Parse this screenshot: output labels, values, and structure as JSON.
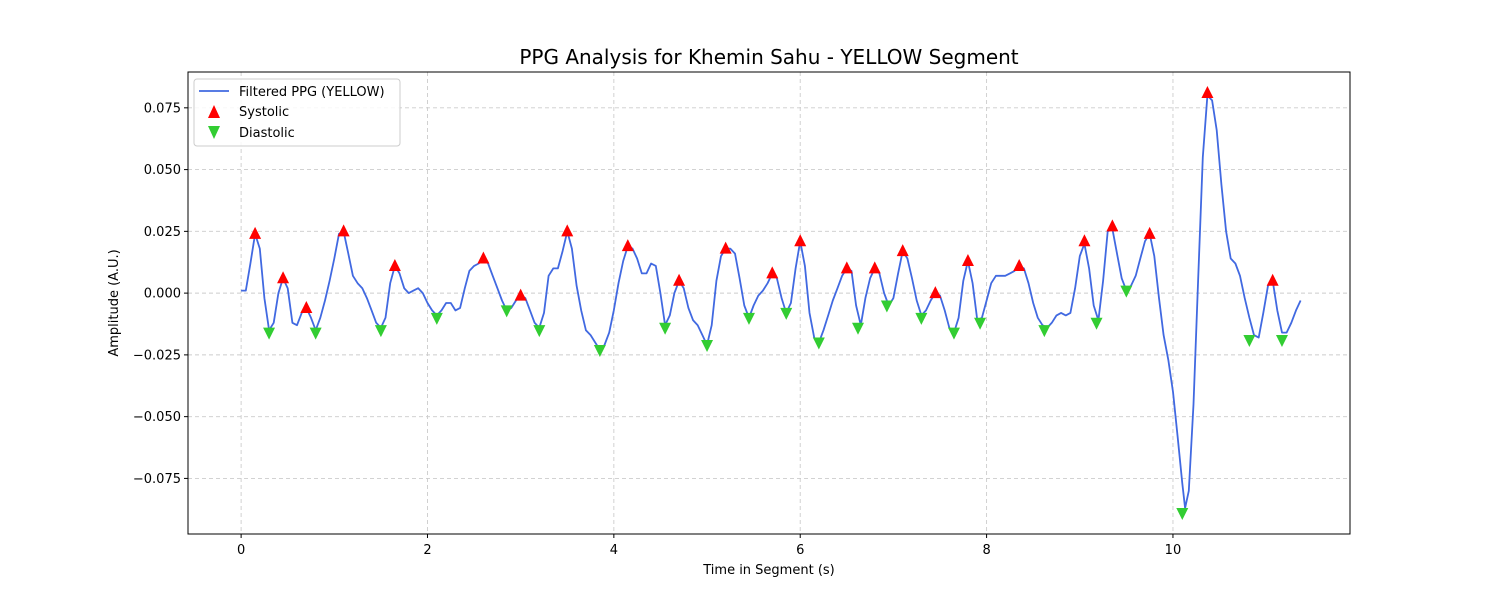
{
  "chart_data": {
    "type": "line",
    "title": "PPG Analysis for Khemin Sahu - YELLOW Segment",
    "xlabel": "Time in Segment (s)",
    "ylabel": "Amplitude (A.U.)",
    "xlim": [
      -0.57,
      11.9
    ],
    "ylim": [
      -0.0975,
      0.0895
    ],
    "x_ticks": [
      0,
      2,
      4,
      6,
      8,
      10
    ],
    "x_tick_labels": [
      "0",
      "2",
      "4",
      "6",
      "8",
      "10"
    ],
    "y_ticks": [
      -0.075,
      -0.05,
      -0.025,
      0.0,
      0.025,
      0.05,
      0.075
    ],
    "y_tick_labels": [
      "−0.075",
      "−0.050",
      "−0.025",
      "0.000",
      "0.025",
      "0.050",
      "0.075"
    ],
    "grid": true,
    "legend_position": "top-left",
    "colors": {
      "line": "#4169e1",
      "systolic": "#ff0000",
      "diastolic": "#32cd32",
      "grid": "#cccccc"
    },
    "series": [
      {
        "name": "Filtered PPG (YELLOW)",
        "kind": "line",
        "points": [
          [
            0.0,
            0.001
          ],
          [
            0.05,
            0.001
          ],
          [
            0.1,
            0.012
          ],
          [
            0.15,
            0.024
          ],
          [
            0.2,
            0.018
          ],
          [
            0.25,
            -0.002
          ],
          [
            0.3,
            -0.015
          ],
          [
            0.35,
            -0.012
          ],
          [
            0.4,
            0.0
          ],
          [
            0.45,
            0.006
          ],
          [
            0.5,
            0.002
          ],
          [
            0.55,
            -0.012
          ],
          [
            0.6,
            -0.013
          ],
          [
            0.65,
            -0.008
          ],
          [
            0.7,
            -0.006
          ],
          [
            0.75,
            -0.01
          ],
          [
            0.8,
            -0.015
          ],
          [
            0.85,
            -0.01
          ],
          [
            0.9,
            -0.003
          ],
          [
            0.95,
            0.005
          ],
          [
            1.0,
            0.014
          ],
          [
            1.05,
            0.024
          ],
          [
            1.1,
            0.025
          ],
          [
            1.15,
            0.016
          ],
          [
            1.2,
            0.007
          ],
          [
            1.25,
            0.004
          ],
          [
            1.3,
            0.002
          ],
          [
            1.35,
            -0.002
          ],
          [
            1.4,
            -0.007
          ],
          [
            1.45,
            -0.012
          ],
          [
            1.5,
            -0.014
          ],
          [
            1.55,
            -0.01
          ],
          [
            1.6,
            0.004
          ],
          [
            1.65,
            0.011
          ],
          [
            1.7,
            0.008
          ],
          [
            1.75,
            0.002
          ],
          [
            1.8,
            0.0
          ],
          [
            1.85,
            0.001
          ],
          [
            1.9,
            0.002
          ],
          [
            1.95,
            0.0
          ],
          [
            2.0,
            -0.004
          ],
          [
            2.05,
            -0.007
          ],
          [
            2.1,
            -0.009
          ],
          [
            2.15,
            -0.007
          ],
          [
            2.2,
            -0.004
          ],
          [
            2.25,
            -0.004
          ],
          [
            2.3,
            -0.007
          ],
          [
            2.35,
            -0.006
          ],
          [
            2.4,
            0.002
          ],
          [
            2.45,
            0.009
          ],
          [
            2.5,
            0.011
          ],
          [
            2.55,
            0.012
          ],
          [
            2.6,
            0.014
          ],
          [
            2.65,
            0.012
          ],
          [
            2.7,
            0.007
          ],
          [
            2.75,
            0.002
          ],
          [
            2.8,
            -0.003
          ],
          [
            2.85,
            -0.007
          ],
          [
            2.9,
            -0.006
          ],
          [
            2.95,
            -0.003
          ],
          [
            3.0,
            -0.001
          ],
          [
            3.05,
            -0.002
          ],
          [
            3.1,
            -0.007
          ],
          [
            3.15,
            -0.012
          ],
          [
            3.2,
            -0.014
          ],
          [
            3.25,
            -0.008
          ],
          [
            3.3,
            0.007
          ],
          [
            3.35,
            0.01
          ],
          [
            3.4,
            0.01
          ],
          [
            3.45,
            0.017
          ],
          [
            3.5,
            0.025
          ],
          [
            3.55,
            0.018
          ],
          [
            3.6,
            0.003
          ],
          [
            3.65,
            -0.007
          ],
          [
            3.7,
            -0.015
          ],
          [
            3.75,
            -0.017
          ],
          [
            3.8,
            -0.02
          ],
          [
            3.85,
            -0.023
          ],
          [
            3.9,
            -0.021
          ],
          [
            3.95,
            -0.016
          ],
          [
            4.0,
            -0.007
          ],
          [
            4.05,
            0.004
          ],
          [
            4.1,
            0.013
          ],
          [
            4.15,
            0.019
          ],
          [
            4.2,
            0.018
          ],
          [
            4.25,
            0.014
          ],
          [
            4.3,
            0.008
          ],
          [
            4.35,
            0.008
          ],
          [
            4.4,
            0.012
          ],
          [
            4.45,
            0.011
          ],
          [
            4.5,
            0.0
          ],
          [
            4.55,
            -0.013
          ],
          [
            4.6,
            -0.009
          ],
          [
            4.65,
            0.0
          ],
          [
            4.7,
            0.005
          ],
          [
            4.75,
            0.002
          ],
          [
            4.8,
            -0.006
          ],
          [
            4.85,
            -0.011
          ],
          [
            4.9,
            -0.013
          ],
          [
            4.95,
            -0.017
          ],
          [
            5.0,
            -0.021
          ],
          [
            5.05,
            -0.013
          ],
          [
            5.1,
            0.005
          ],
          [
            5.15,
            0.015
          ],
          [
            5.2,
            0.018
          ],
          [
            5.25,
            0.018
          ],
          [
            5.3,
            0.016
          ],
          [
            5.35,
            0.006
          ],
          [
            5.4,
            -0.005
          ],
          [
            5.45,
            -0.01
          ],
          [
            5.5,
            -0.005
          ],
          [
            5.55,
            -0.001
          ],
          [
            5.6,
            0.001
          ],
          [
            5.65,
            0.004
          ],
          [
            5.7,
            0.008
          ],
          [
            5.75,
            0.006
          ],
          [
            5.8,
            -0.002
          ],
          [
            5.85,
            -0.008
          ],
          [
            5.9,
            -0.004
          ],
          [
            5.95,
            0.01
          ],
          [
            6.0,
            0.021
          ],
          [
            6.05,
            0.011
          ],
          [
            6.1,
            -0.008
          ],
          [
            6.15,
            -0.018
          ],
          [
            6.2,
            -0.02
          ],
          [
            6.25,
            -0.015
          ],
          [
            6.3,
            -0.009
          ],
          [
            6.35,
            -0.003
          ],
          [
            6.4,
            0.002
          ],
          [
            6.45,
            0.007
          ],
          [
            6.5,
            0.01
          ],
          [
            6.55,
            0.009
          ],
          [
            6.6,
            -0.005
          ],
          [
            6.65,
            -0.013
          ],
          [
            6.7,
            -0.002
          ],
          [
            6.75,
            0.006
          ],
          [
            6.8,
            0.01
          ],
          [
            6.85,
            0.008
          ],
          [
            6.9,
            0.0
          ],
          [
            6.95,
            -0.005
          ],
          [
            7.0,
            -0.002
          ],
          [
            7.05,
            0.008
          ],
          [
            7.1,
            0.017
          ],
          [
            7.15,
            0.014
          ],
          [
            7.2,
            0.006
          ],
          [
            7.25,
            -0.003
          ],
          [
            7.3,
            -0.009
          ],
          [
            7.35,
            -0.007
          ],
          [
            7.4,
            -0.003
          ],
          [
            7.45,
            0.0
          ],
          [
            7.5,
            -0.001
          ],
          [
            7.55,
            -0.007
          ],
          [
            7.6,
            -0.014
          ],
          [
            7.65,
            -0.016
          ],
          [
            7.7,
            -0.01
          ],
          [
            7.75,
            0.005
          ],
          [
            7.8,
            0.013
          ],
          [
            7.85,
            0.004
          ],
          [
            7.9,
            -0.011
          ],
          [
            7.95,
            -0.01
          ],
          [
            8.0,
            -0.003
          ],
          [
            8.05,
            0.004
          ],
          [
            8.1,
            0.007
          ],
          [
            8.15,
            0.007
          ],
          [
            8.2,
            0.007
          ],
          [
            8.25,
            0.008
          ],
          [
            8.3,
            0.009
          ],
          [
            8.35,
            0.011
          ],
          [
            8.4,
            0.01
          ],
          [
            8.45,
            0.004
          ],
          [
            8.5,
            -0.004
          ],
          [
            8.55,
            -0.01
          ],
          [
            8.6,
            -0.013
          ],
          [
            8.65,
            -0.014
          ],
          [
            8.7,
            -0.012
          ],
          [
            8.75,
            -0.009
          ],
          [
            8.8,
            -0.008
          ],
          [
            8.85,
            -0.009
          ],
          [
            8.9,
            -0.008
          ],
          [
            8.95,
            0.002
          ],
          [
            9.0,
            0.015
          ],
          [
            9.05,
            0.02
          ],
          [
            9.1,
            0.01
          ],
          [
            9.15,
            -0.005
          ],
          [
            9.2,
            -0.011
          ],
          [
            9.25,
            0.005
          ],
          [
            9.3,
            0.025
          ],
          [
            9.35,
            0.026
          ],
          [
            9.4,
            0.016
          ],
          [
            9.45,
            0.006
          ],
          [
            9.5,
            0.001
          ],
          [
            9.55,
            0.003
          ],
          [
            9.6,
            0.007
          ],
          [
            9.65,
            0.014
          ],
          [
            9.7,
            0.021
          ],
          [
            9.75,
            0.024
          ],
          [
            9.8,
            0.015
          ],
          [
            9.85,
            -0.002
          ],
          [
            9.9,
            -0.017
          ],
          [
            9.95,
            -0.027
          ],
          [
            10.0,
            -0.04
          ],
          [
            10.05,
            -0.058
          ],
          [
            10.1,
            -0.077
          ],
          [
            10.13,
            -0.087
          ],
          [
            10.17,
            -0.08
          ],
          [
            10.22,
            -0.045
          ],
          [
            10.27,
            0.005
          ],
          [
            10.32,
            0.055
          ],
          [
            10.37,
            0.08
          ],
          [
            10.42,
            0.078
          ],
          [
            10.47,
            0.066
          ],
          [
            10.52,
            0.044
          ],
          [
            10.57,
            0.025
          ],
          [
            10.62,
            0.014
          ],
          [
            10.67,
            0.012
          ],
          [
            10.72,
            0.007
          ],
          [
            10.77,
            -0.002
          ],
          [
            10.82,
            -0.01
          ],
          [
            10.87,
            -0.017
          ],
          [
            10.92,
            -0.018
          ],
          [
            10.97,
            -0.008
          ],
          [
            11.02,
            0.003
          ],
          [
            11.07,
            0.005
          ],
          [
            11.12,
            -0.007
          ],
          [
            11.17,
            -0.016
          ],
          [
            11.22,
            -0.016
          ],
          [
            11.27,
            -0.012
          ],
          [
            11.32,
            -0.007
          ],
          [
            11.37,
            -0.003
          ]
        ]
      },
      {
        "name": "Systolic",
        "kind": "marker-up",
        "points": [
          [
            0.15,
            0.024
          ],
          [
            0.45,
            0.006
          ],
          [
            0.7,
            -0.006
          ],
          [
            1.1,
            0.025
          ],
          [
            1.65,
            0.011
          ],
          [
            2.6,
            0.014
          ],
          [
            3.0,
            -0.001
          ],
          [
            3.5,
            0.025
          ],
          [
            4.15,
            0.019
          ],
          [
            4.7,
            0.005
          ],
          [
            5.2,
            0.018
          ],
          [
            5.7,
            0.008
          ],
          [
            6.0,
            0.021
          ],
          [
            6.5,
            0.01
          ],
          [
            6.8,
            0.01
          ],
          [
            7.1,
            0.017
          ],
          [
            7.45,
            0.0
          ],
          [
            7.8,
            0.013
          ],
          [
            8.35,
            0.011
          ],
          [
            9.05,
            0.021
          ],
          [
            9.35,
            0.027
          ],
          [
            9.75,
            0.024
          ],
          [
            10.37,
            0.081
          ],
          [
            11.07,
            0.005
          ]
        ]
      },
      {
        "name": "Diastolic",
        "kind": "marker-down",
        "points": [
          [
            0.3,
            -0.016
          ],
          [
            0.8,
            -0.016
          ],
          [
            1.5,
            -0.015
          ],
          [
            2.1,
            -0.01
          ],
          [
            2.85,
            -0.007
          ],
          [
            3.2,
            -0.015
          ],
          [
            3.85,
            -0.023
          ],
          [
            4.55,
            -0.014
          ],
          [
            5.0,
            -0.021
          ],
          [
            5.45,
            -0.01
          ],
          [
            5.85,
            -0.008
          ],
          [
            6.2,
            -0.02
          ],
          [
            6.62,
            -0.014
          ],
          [
            6.93,
            -0.005
          ],
          [
            7.3,
            -0.01
          ],
          [
            7.65,
            -0.016
          ],
          [
            7.93,
            -0.012
          ],
          [
            8.62,
            -0.015
          ],
          [
            9.18,
            -0.012
          ],
          [
            9.5,
            0.001
          ],
          [
            10.1,
            -0.089
          ],
          [
            10.82,
            -0.019
          ],
          [
            11.17,
            -0.019
          ]
        ]
      }
    ]
  }
}
